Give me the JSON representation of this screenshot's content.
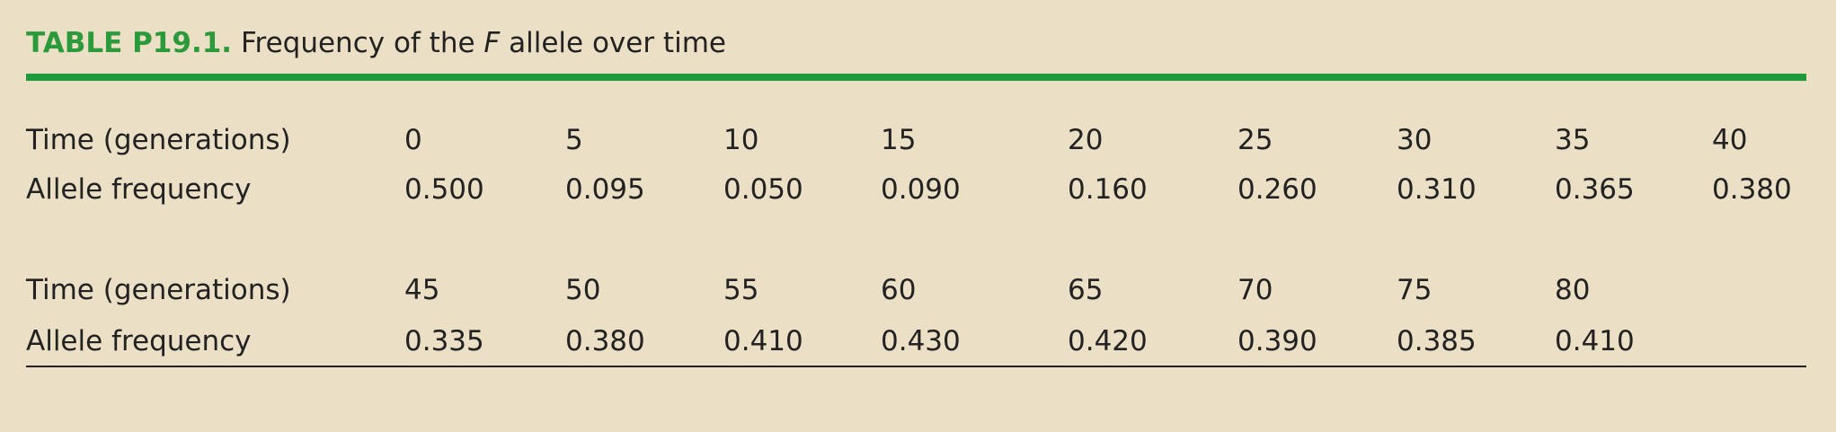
{
  "header": {
    "label": "TABLE P19.1.",
    "title_parts": [
      "Frequency of the ",
      "F",
      " allele over time"
    ]
  },
  "table": {
    "blocks": [
      {
        "rows": [
          [
            "Time (generations)",
            "0",
            "5",
            "10",
            "15",
            "20",
            "25",
            "30",
            "35",
            "40"
          ],
          [
            "Allele frequency",
            "0.500",
            "0.095",
            "0.050",
            "0.090",
            "0.160",
            "0.260",
            "0.310",
            "0.365",
            "0.380"
          ]
        ]
      },
      {
        "rows": [
          [
            "Time (generations)",
            "45",
            "50",
            "55",
            "60",
            "65",
            "70",
            "75",
            "80"
          ],
          [
            "Allele frequency",
            "0.335",
            "0.380",
            "0.410",
            "0.430",
            "0.420",
            "0.390",
            "0.385",
            "0.410"
          ]
        ]
      }
    ]
  }
}
